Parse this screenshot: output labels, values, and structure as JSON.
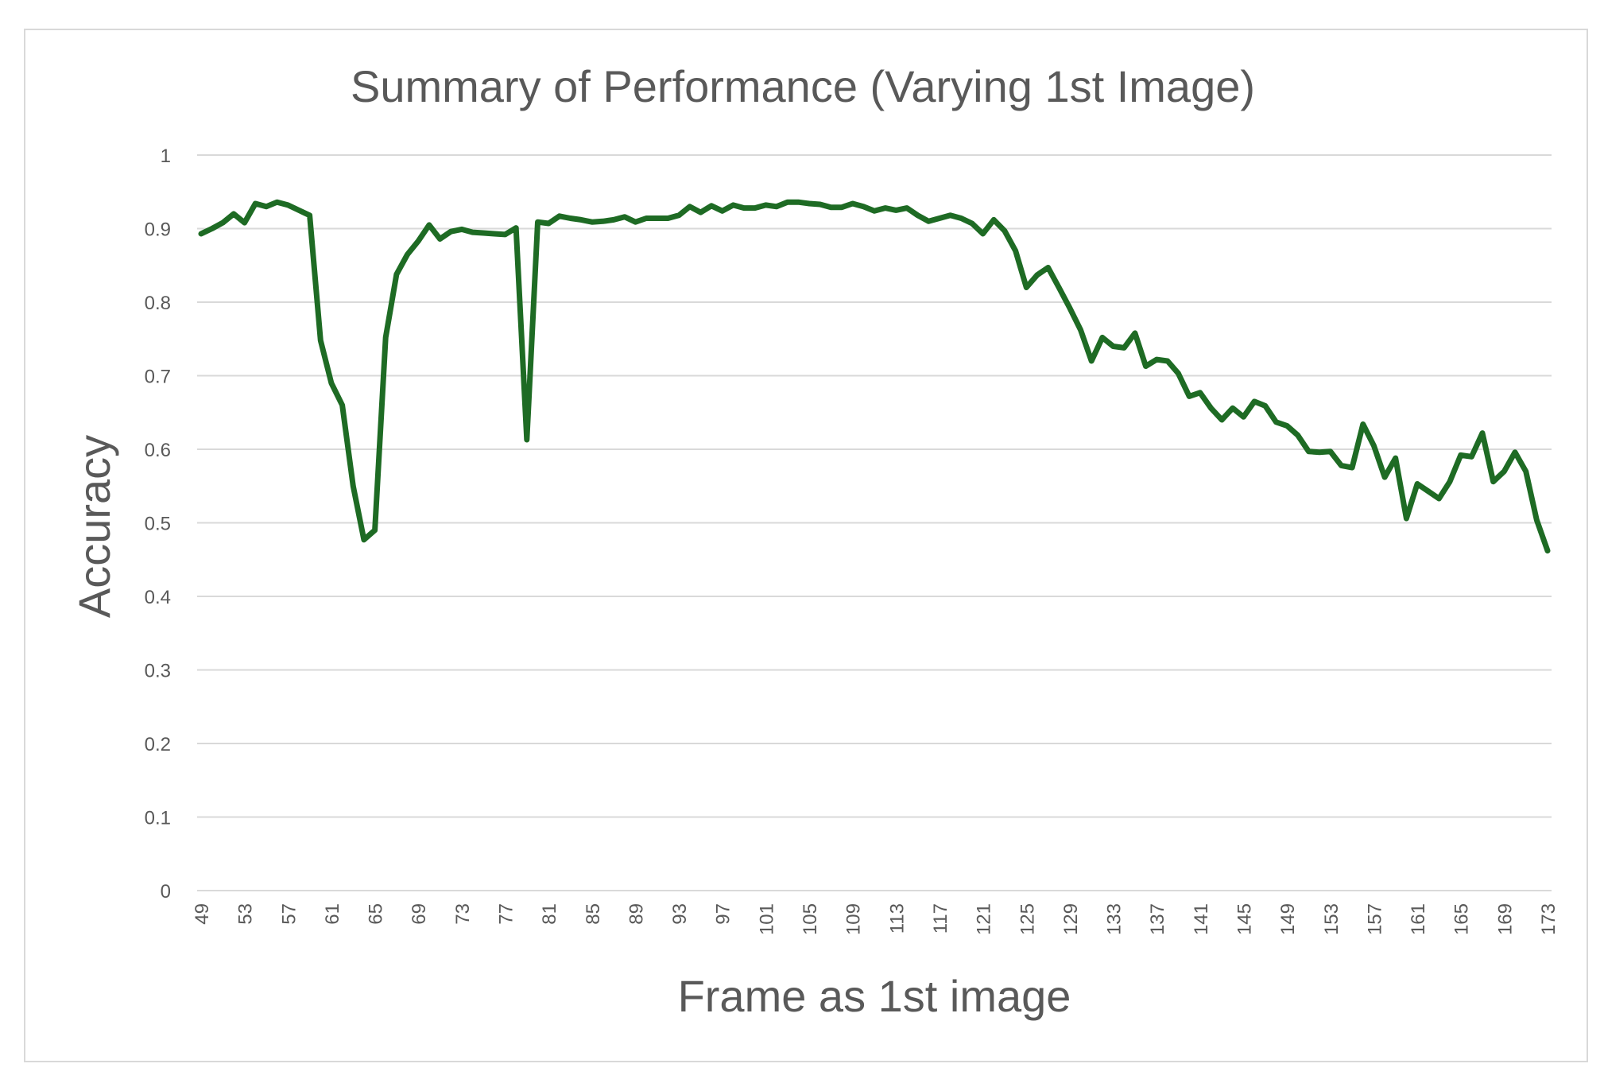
{
  "chart_data": {
    "type": "line",
    "title": "Summary of Performance (Varying 1st Image)",
    "xlabel": "Frame as 1st image",
    "ylabel": "Accuracy",
    "ylim": [
      0,
      1
    ],
    "yticks": [
      0,
      0.1,
      0.2,
      0.3,
      0.4,
      0.5,
      0.6,
      0.7,
      0.8,
      0.9,
      1
    ],
    "ytick_labels": [
      "0",
      "0.1",
      "0.2",
      "0.3",
      "0.4",
      "0.5",
      "0.6",
      "0.7",
      "0.8",
      "0.9",
      "1"
    ],
    "xticks": [
      49,
      53,
      57,
      61,
      65,
      69,
      73,
      77,
      81,
      85,
      89,
      93,
      97,
      101,
      105,
      109,
      113,
      117,
      121,
      125,
      129,
      133,
      137,
      141,
      145,
      149,
      153,
      157,
      161,
      165,
      169,
      173
    ],
    "xtick_labels": [
      "49",
      "53",
      "57",
      "61",
      "65",
      "69",
      "73",
      "77",
      "81",
      "85",
      "89",
      "93",
      "97",
      "101",
      "105",
      "109",
      "113",
      "117",
      "121",
      "125",
      "129",
      "133",
      "137",
      "141",
      "145",
      "149",
      "153",
      "157",
      "161",
      "165",
      "169",
      "173"
    ],
    "grid": true,
    "legend": "none",
    "line_color": "#1e6b24",
    "series": [
      {
        "x": [
          49,
          50,
          51,
          52,
          53,
          54,
          55,
          56,
          57,
          58,
          59,
          60,
          61,
          62,
          63,
          64,
          65,
          66,
          67,
          68,
          69,
          70,
          71,
          72,
          73,
          74,
          75,
          76,
          77,
          78,
          79,
          80,
          81,
          82,
          83,
          84,
          85,
          86,
          87,
          88,
          89,
          90,
          91,
          92,
          93,
          94,
          95,
          96,
          97,
          98,
          99,
          100,
          101,
          102,
          103,
          104,
          105,
          106,
          107,
          108,
          109,
          110,
          111,
          112,
          113,
          114,
          115,
          116,
          117,
          118,
          119,
          120,
          121,
          122,
          123,
          124,
          125,
          126,
          127,
          128,
          129,
          130,
          131,
          132,
          133,
          134,
          135,
          136,
          137,
          138,
          139,
          140,
          141,
          142,
          143,
          144,
          145,
          146,
          147,
          148,
          149,
          150,
          151,
          152,
          153,
          154,
          155,
          156,
          157,
          158,
          159,
          160,
          161,
          162,
          163,
          164,
          165,
          166,
          167,
          168,
          169,
          170,
          171,
          172,
          173
        ],
        "values": [
          0.893,
          0.9,
          0.908,
          0.92,
          0.908,
          0.934,
          0.93,
          0.936,
          0.932,
          0.925,
          0.918,
          0.748,
          0.69,
          0.66,
          0.55,
          0.477,
          0.49,
          0.752,
          0.838,
          0.865,
          0.883,
          0.905,
          0.886,
          0.896,
          0.899,
          0.895,
          0.894,
          0.893,
          0.892,
          0.901,
          0.613,
          0.909,
          0.907,
          0.917,
          0.914,
          0.912,
          0.909,
          0.91,
          0.912,
          0.916,
          0.909,
          0.914,
          0.914,
          0.914,
          0.918,
          0.93,
          0.922,
          0.931,
          0.924,
          0.932,
          0.928,
          0.928,
          0.932,
          0.93,
          0.936,
          0.936,
          0.934,
          0.933,
          0.929,
          0.929,
          0.934,
          0.93,
          0.924,
          0.928,
          0.925,
          0.928,
          0.918,
          0.91,
          0.914,
          0.918,
          0.914,
          0.907,
          0.893,
          0.912,
          0.897,
          0.87,
          0.82,
          0.837,
          0.847,
          0.82,
          0.792,
          0.762,
          0.72,
          0.752,
          0.74,
          0.738,
          0.758,
          0.713,
          0.722,
          0.72,
          0.703,
          0.672,
          0.677,
          0.656,
          0.64,
          0.656,
          0.644,
          0.665,
          0.659,
          0.637,
          0.632,
          0.619,
          0.597,
          0.596,
          0.597,
          0.578,
          0.575,
          0.634,
          0.605,
          0.562,
          0.588,
          0.506,
          0.553,
          0.543,
          0.533,
          0.556,
          0.592,
          0.59,
          0.622,
          0.556,
          0.57,
          0.596,
          0.57,
          0.504,
          0.462
        ]
      }
    ]
  }
}
